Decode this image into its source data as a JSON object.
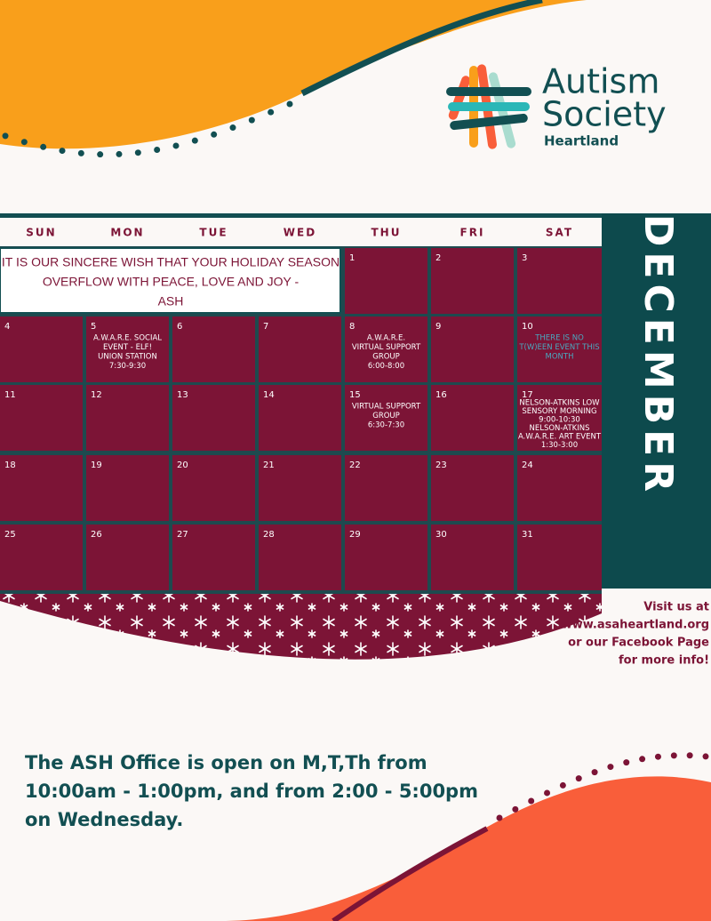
{
  "logo": {
    "line1": "Autism",
    "line2": "Society",
    "sub": "Heartland"
  },
  "calendar": {
    "month": "DECEMBER",
    "weekdays": [
      "SUN",
      "MON",
      "TUE",
      "WED",
      "THU",
      "FRI",
      "SAT"
    ],
    "banner": [
      "IT IS OUR SINCERE WISH THAT YOUR HOLIDAY SEASON",
      "OVERFLOW WITH PEACE, LOVE AND JOY -",
      "ASH"
    ],
    "days": [
      {
        "day": 1
      },
      {
        "day": 2
      },
      {
        "day": 3
      },
      {
        "day": 4
      },
      {
        "day": 5,
        "event": [
          "A.W.A.R.E. SOCIAL",
          "EVENT - ELF!",
          "UNION STATION",
          "7:30-9:30"
        ]
      },
      {
        "day": 6
      },
      {
        "day": 7
      },
      {
        "day": 8,
        "event": [
          "A.W.A.R.E.",
          "VIRTUAL SUPPORT",
          "GROUP",
          "6:00-8:00"
        ]
      },
      {
        "day": 9
      },
      {
        "day": 10,
        "note": [
          "THERE IS NO",
          "T(W)EEN EVENT THIS",
          "MONTH"
        ]
      },
      {
        "day": 11
      },
      {
        "day": 12
      },
      {
        "day": 13
      },
      {
        "day": 14
      },
      {
        "day": 15,
        "event": [
          "VIRTUAL SUPPORT",
          "GROUP",
          "6:30-7:30"
        ]
      },
      {
        "day": 16
      },
      {
        "day": 17,
        "event": [
          "NELSON-ATKINS LOW",
          "SENSORY MORNING",
          "9:00-10:30",
          "NELSON-ATKINS",
          "A.W.A.R.E. ART EVENT",
          "1:30-3:00"
        ]
      },
      {
        "day": 18
      },
      {
        "day": 19
      },
      {
        "day": 20
      },
      {
        "day": 21
      },
      {
        "day": 22
      },
      {
        "day": 23
      },
      {
        "day": 24
      },
      {
        "day": 25
      },
      {
        "day": 26
      },
      {
        "day": 27
      },
      {
        "day": 28
      },
      {
        "day": 29
      },
      {
        "day": 30
      },
      {
        "day": 31
      }
    ]
  },
  "visit": [
    "Visit us at",
    "www.asaheartland.org",
    "or our Facebook Page",
    "for more info!"
  ],
  "office": [
    "The ASH Office is open on M,T,Th from",
    "10:00am - 1:00pm, and from 2:00 - 5:00pm",
    "on Wednesday."
  ]
}
